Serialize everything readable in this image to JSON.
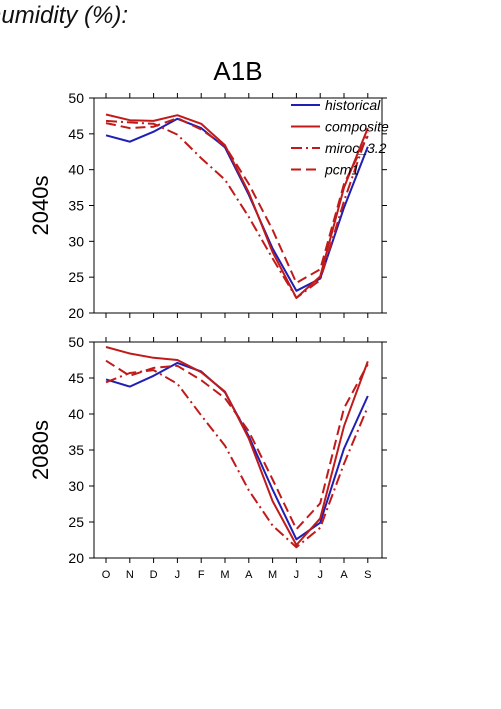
{
  "header_text": "humidity (%):",
  "colors": {
    "historical": "#1f1fb4",
    "composite": "#c01a1a",
    "axis": "#000000"
  },
  "chart_data": {
    "type": "line",
    "title": "A1B",
    "x": [
      "O",
      "N",
      "D",
      "J",
      "F",
      "M",
      "A",
      "M",
      "J",
      "J",
      "A",
      "S"
    ],
    "legend": {
      "placement": "top-right",
      "entries": [
        {
          "name": "historical",
          "style": "solid",
          "color": "historical"
        },
        {
          "name": "composite",
          "style": "solid",
          "color": "composite"
        },
        {
          "name": "miroc_3.2",
          "style": "dashdot",
          "color": "composite"
        },
        {
          "name": "pcm1",
          "style": "dashed",
          "color": "composite"
        }
      ]
    },
    "panels": [
      {
        "ylabel": "2040s",
        "ylim": [
          20,
          50
        ],
        "yticks": [
          20,
          25,
          30,
          35,
          40,
          45,
          50
        ],
        "series": [
          {
            "name": "historical",
            "style": "solid",
            "color": "historical",
            "values": [
              44.8,
              43.9,
              45.3,
              47.1,
              45.8,
              43.1,
              36.5,
              29.0,
              23.1,
              24.8,
              34.7,
              43.2
            ]
          },
          {
            "name": "composite",
            "style": "solid",
            "color": "composite",
            "values": [
              47.7,
              46.9,
              46.8,
              47.6,
              46.4,
              43.4,
              36.8,
              28.5,
              22.1,
              25.1,
              37.5,
              45.8
            ]
          },
          {
            "name": "miroc_3.2",
            "style": "dashdot",
            "color": "composite",
            "values": [
              46.8,
              46.6,
              46.4,
              44.9,
              41.6,
              38.6,
              33.4,
              27.6,
              22.1,
              24.6,
              35.6,
              45.2
            ]
          },
          {
            "name": "pcm1",
            "style": "dashed",
            "color": "composite",
            "values": [
              46.5,
              45.8,
              46.0,
              47.2,
              45.6,
              43.3,
              38.0,
              31.6,
              24.2,
              26.1,
              38.0,
              44.7
            ]
          }
        ]
      },
      {
        "ylabel": "2080s",
        "ylim": [
          20,
          50
        ],
        "yticks": [
          20,
          25,
          30,
          35,
          40,
          45,
          50
        ],
        "series": [
          {
            "name": "historical",
            "style": "solid",
            "color": "historical",
            "values": [
              44.8,
              43.8,
              45.3,
              47.1,
              45.9,
              43.0,
              36.9,
              29.5,
              22.6,
              24.9,
              35.2,
              42.5
            ]
          },
          {
            "name": "composite",
            "style": "solid",
            "color": "composite",
            "values": [
              49.3,
              48.4,
              47.8,
              47.5,
              45.8,
              43.1,
              36.6,
              27.9,
              21.8,
              25.5,
              38.3,
              47.3
            ]
          },
          {
            "name": "miroc_3.2",
            "style": "dashdot",
            "color": "composite",
            "values": [
              44.4,
              45.7,
              46.1,
              44.2,
              39.8,
              35.6,
              29.4,
              24.5,
              21.5,
              24.2,
              33.1,
              41.0
            ]
          },
          {
            "name": "pcm1",
            "style": "dashed",
            "color": "composite",
            "values": [
              47.4,
              45.3,
              46.4,
              46.7,
              44.7,
              42.2,
              37.6,
              30.9,
              24.0,
              27.6,
              40.8,
              46.9
            ]
          }
        ]
      }
    ]
  }
}
